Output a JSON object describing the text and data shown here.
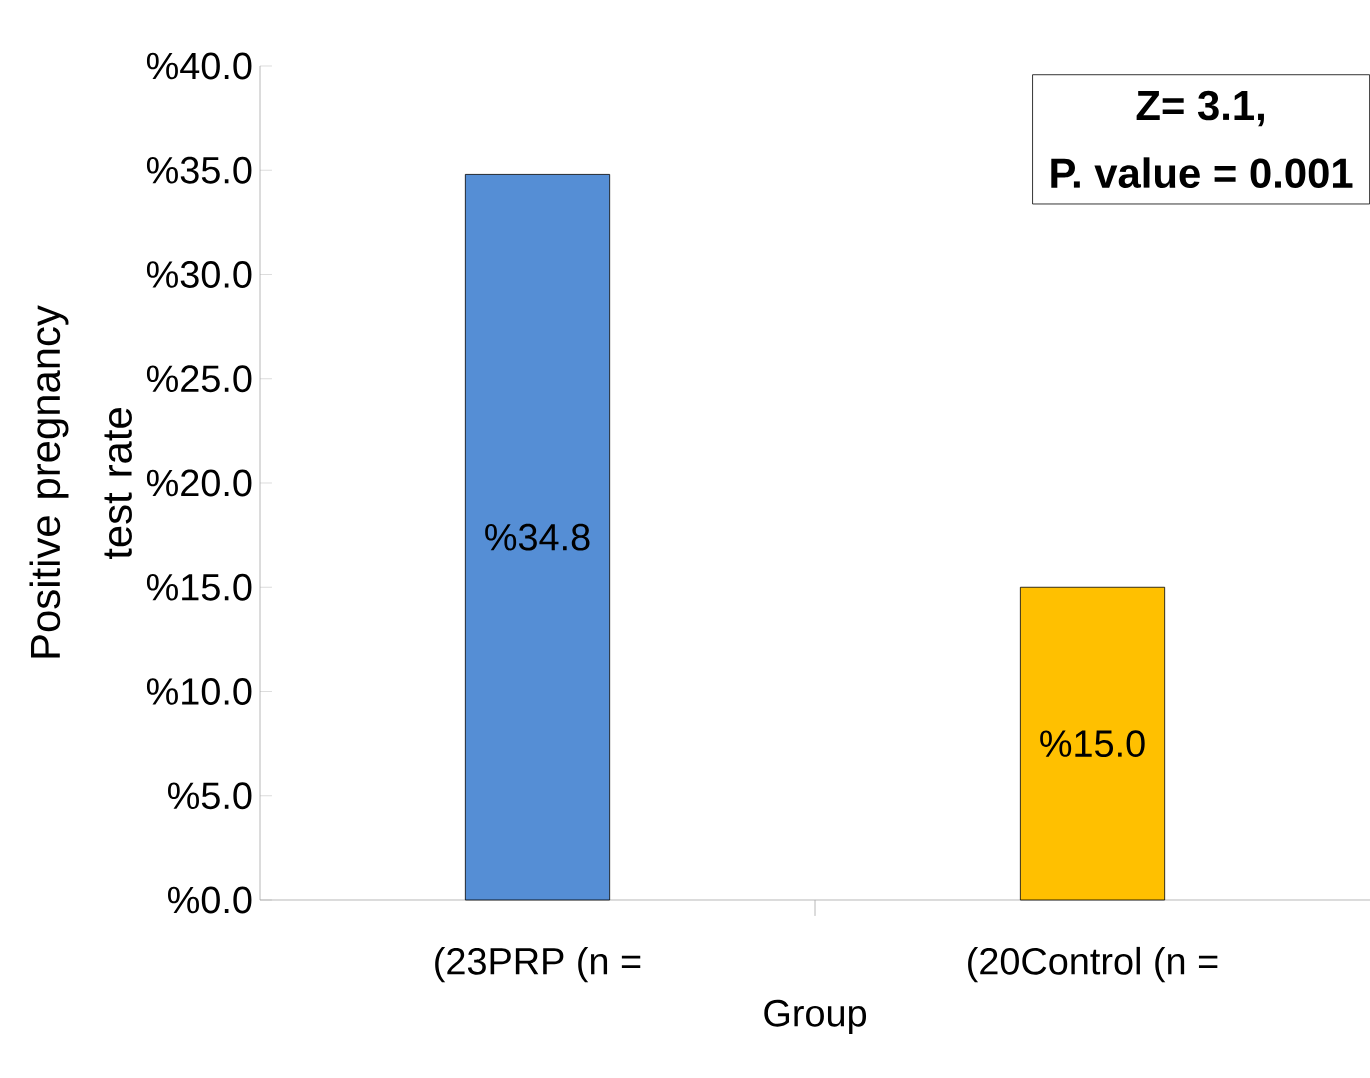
{
  "chart_data": {
    "type": "bar",
    "categories": [
      "(23PRP  (n =",
      "(20Control (n ="
    ],
    "values": [
      34.8,
      15.0
    ],
    "colors": [
      "#558ed5",
      "#ffc000"
    ],
    "value_labels": [
      "%34.8",
      "%15.0"
    ],
    "xlabel": "Group",
    "ylabel": "Positive pregnancy test rate",
    "ylim": [
      0,
      40
    ],
    "yticks": [
      {
        "value": 0,
        "label": "%0.0"
      },
      {
        "value": 5,
        "label": "%5.0"
      },
      {
        "value": 10,
        "label": "%10.0"
      },
      {
        "value": 15,
        "label": "%15.0"
      },
      {
        "value": 20,
        "label": "%20.0"
      },
      {
        "value": 25,
        "label": "%25.0"
      },
      {
        "value": 30,
        "label": "%30.0"
      },
      {
        "value": 35,
        "label": "%35.0"
      },
      {
        "value": 40,
        "label": "%40.0"
      }
    ],
    "annotations": [
      "Z= 3.1,",
      "P. value = 0.001"
    ],
    "grid": false
  }
}
